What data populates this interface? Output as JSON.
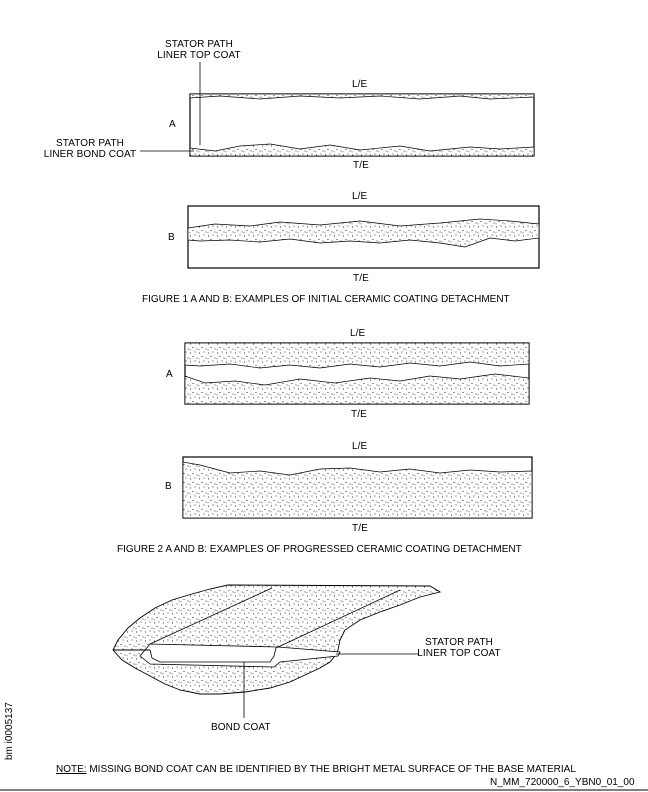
{
  "fig1": {
    "a": {
      "letter": "A",
      "le": "L/E",
      "te": "T/E",
      "top_coat_label": [
        "STATOR PATH",
        "LINER TOP COAT"
      ],
      "bond_coat_label": [
        "STATOR PATH",
        "LINER BOND COAT"
      ]
    },
    "b": {
      "letter": "B",
      "le": "L/E",
      "te": "T/E"
    },
    "caption": "FIGURE 1 A AND B: EXAMPLES OF INITIAL CERAMIC COATING DETACHMENT"
  },
  "fig2": {
    "a": {
      "letter": "A",
      "le": "L/E",
      "te": "T/E"
    },
    "b": {
      "letter": "B",
      "le": "L/E",
      "te": "T/E"
    },
    "caption": "FIGURE 2 A AND B: EXAMPLES OF PROGRESSED CERAMIC COATING DETACHMENT"
  },
  "fig3": {
    "top_coat_label": [
      "STATOR PATH",
      "LINER TOP COAT"
    ],
    "bond_coat_label": "BOND COAT"
  },
  "note": {
    "prefix": "NOTE:",
    "text": " MISSING BOND COAT CAN BE IDENTIFIED BY THE BRIGHT METAL SURFACE OF THE BASE MATERIAL"
  },
  "side_id": "bm i0005137",
  "doc_id": "N_MM_720000_6_YBN0_01_00"
}
